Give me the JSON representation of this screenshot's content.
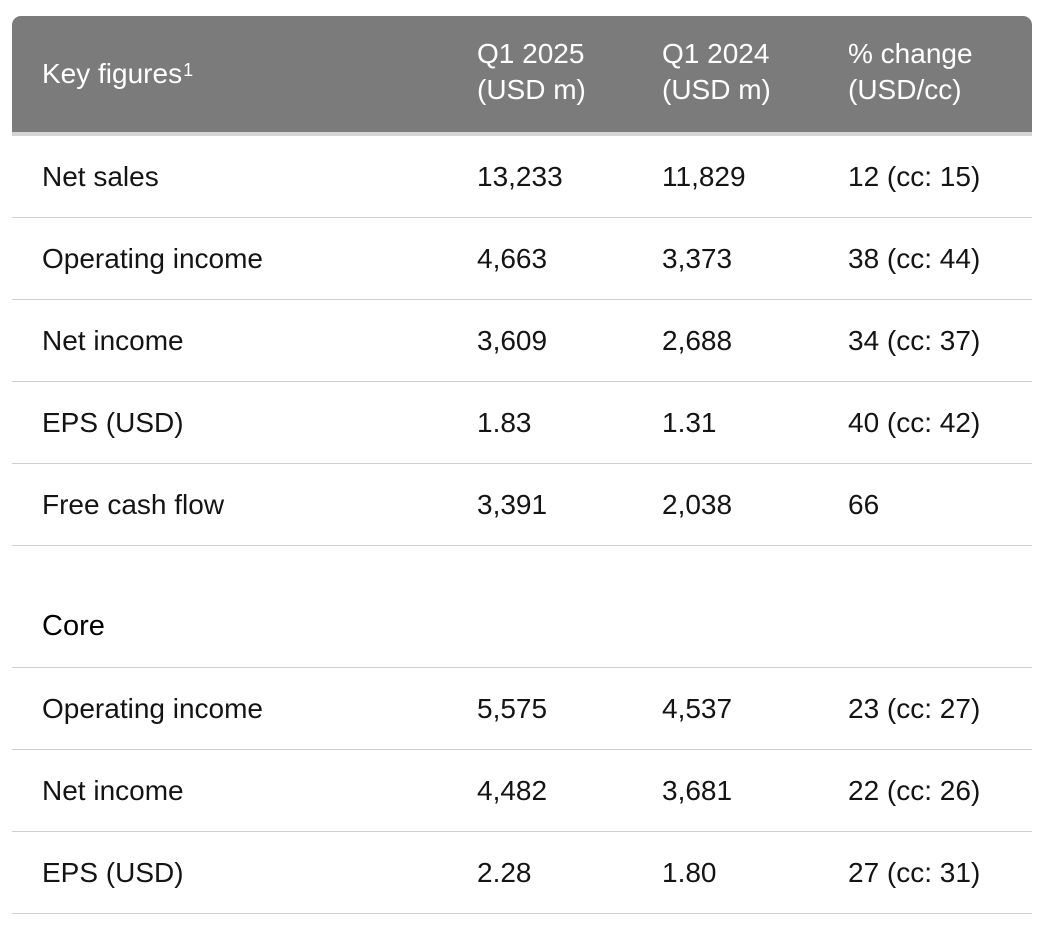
{
  "header": {
    "label": "Key figures",
    "label_footnote": "1",
    "col1_line1": "Q1 2025",
    "col1_line2": "(USD m)",
    "col2_line1": "Q1 2024",
    "col2_line2": "(USD m)",
    "col3_line1": "% change",
    "col3_line2": "(USD/cc)"
  },
  "rows": [
    {
      "label": "Net sales",
      "q1_2025": "13,233",
      "q1_2024": "11,829",
      "change": "12 (cc: 15)"
    },
    {
      "label": "Operating income",
      "q1_2025": "4,663",
      "q1_2024": "3,373",
      "change": "38 (cc: 44)"
    },
    {
      "label": "Net income",
      "q1_2025": "3,609",
      "q1_2024": "2,688",
      "change": "34 (cc: 37)"
    },
    {
      "label": "EPS (USD)",
      "q1_2025": "1.83",
      "q1_2024": "1.31",
      "change": "40 (cc: 42)"
    },
    {
      "label": "Free cash flow",
      "q1_2025": "3,391",
      "q1_2024": "2,038",
      "change": "66"
    }
  ],
  "core": {
    "title": "Core",
    "rows": [
      {
        "label": "Operating income",
        "q1_2025": "5,575",
        "q1_2024": "4,537",
        "change": "23 (cc: 27)"
      },
      {
        "label": "Net income",
        "q1_2025": "4,482",
        "q1_2024": "3,681",
        "change": "22 (cc: 26)"
      },
      {
        "label": "EPS (USD)",
        "q1_2025": "2.28",
        "q1_2024": "1.80",
        "change": "27 (cc: 31)"
      }
    ]
  }
}
